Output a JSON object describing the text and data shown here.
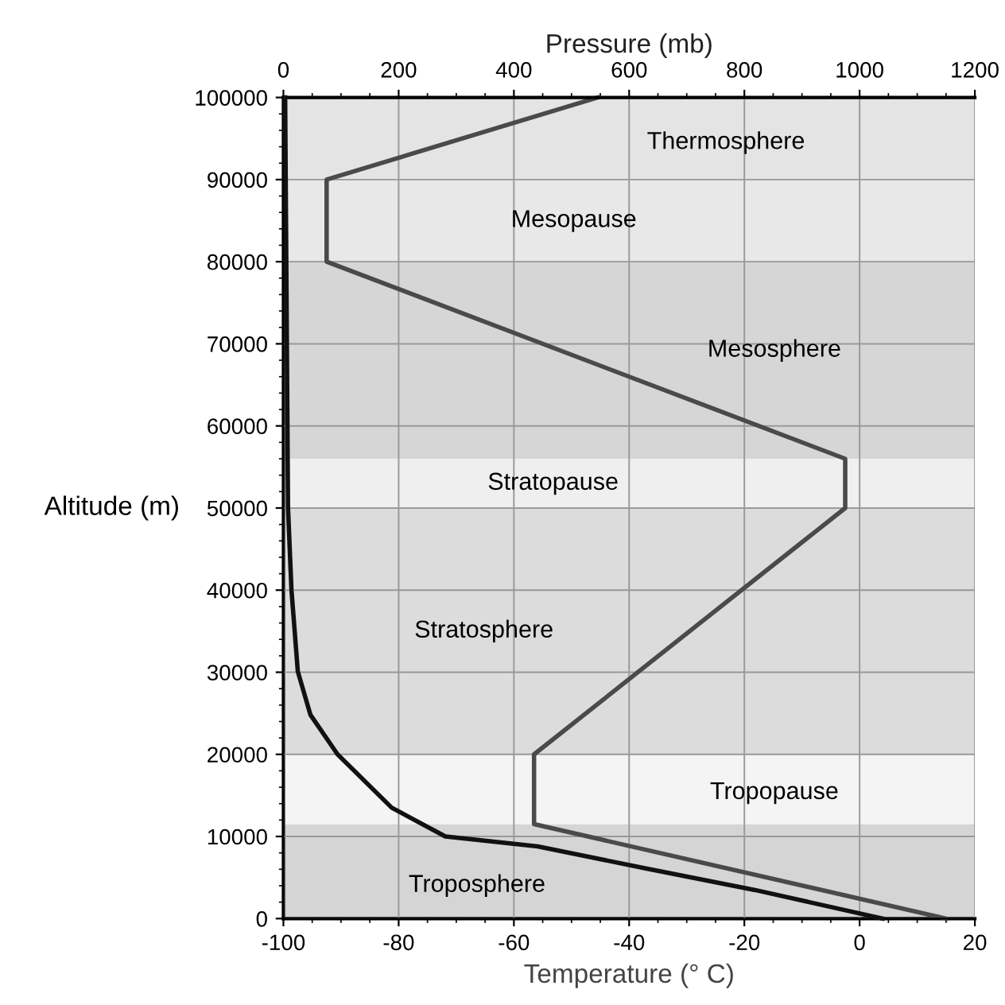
{
  "chart_data": {
    "type": "line",
    "xlabel": "Temperature (° C)",
    "x2label": "Pressure (mb)",
    "ylabel": "Altitude (m)",
    "xlim": [
      -100,
      20
    ],
    "xticks": [
      -100,
      -80,
      -60,
      -40,
      -20,
      0,
      20
    ],
    "x2lim": [
      0,
      1200
    ],
    "x2ticks": [
      0,
      200,
      400,
      600,
      800,
      1000,
      1200
    ],
    "ylim": [
      0,
      100000
    ],
    "yticks": [
      0,
      10000,
      20000,
      30000,
      40000,
      50000,
      60000,
      70000,
      80000,
      90000,
      100000
    ],
    "grid": true,
    "legend": false,
    "marker": "none",
    "line_style": "solid",
    "series": [
      {
        "color": "#4a4a4a",
        "x": [
          15,
          -56.5,
          -56.5,
          -2.5,
          -2.5,
          -92.5,
          -92.5,
          -45.5
        ],
        "values": [
          0,
          11500,
          20000,
          50000,
          56000,
          80000,
          90000,
          100000
        ]
      },
      {
        "color": "#111111",
        "axis": "x2",
        "x": [
          1040,
          817,
          629,
          441,
          281,
          188,
          94,
          47,
          25,
          14,
          8,
          6,
          3
        ],
        "values": [
          0,
          3500,
          6100,
          8800,
          10000,
          13500,
          20000,
          24800,
          30100,
          40000,
          50000,
          70000,
          100000
        ]
      }
    ],
    "bands": [
      {
        "axis": "y",
        "from": 0,
        "to": 11500,
        "color": "#d5d5d5",
        "label": "Troposphere"
      },
      {
        "axis": "y",
        "from": 11500,
        "to": 20000,
        "color": "#f4f4f4",
        "label": "Tropopause"
      },
      {
        "axis": "y",
        "from": 20000,
        "to": 50000,
        "color": "#dcdcdc",
        "label": "Stratosphere"
      },
      {
        "axis": "y",
        "from": 50000,
        "to": 56000,
        "color": "#efefef",
        "label": "Stratopause"
      },
      {
        "axis": "y",
        "from": 56000,
        "to": 80000,
        "color": "#d6d6d6",
        "label": "Mesosphere"
      },
      {
        "axis": "y",
        "from": 80000,
        "to": 90000,
        "color": "#e8e8e8",
        "label": "Mesopause"
      },
      {
        "axis": "y",
        "from": 90000,
        "to": 100000,
        "color": "#e4e4e4",
        "label": "Thermosphere"
      }
    ]
  }
}
